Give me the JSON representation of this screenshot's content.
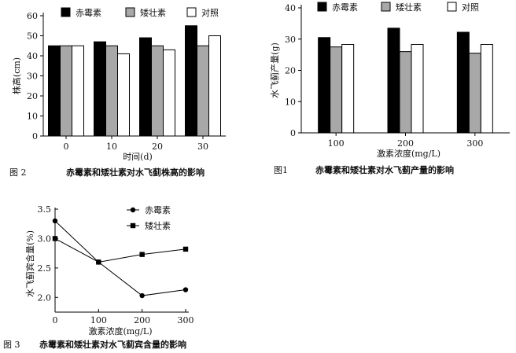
{
  "colors": {
    "black": "#000000",
    "gray": "#a8a8a8",
    "white": "#ffffff"
  },
  "chart_data": [
    {
      "id": "fig2",
      "type": "bar",
      "caption_num": "图 2",
      "caption": "赤霉素和矮壮素对水飞蓟株高的影响",
      "xlabel": "时间(d)",
      "ylabel": "株高(cm)",
      "categories": [
        "0",
        "10",
        "20",
        "30"
      ],
      "ylim": [
        0,
        60
      ],
      "yticks": [
        0,
        10,
        20,
        30,
        40,
        50,
        60
      ],
      "series": [
        {
          "name": "赤霉素",
          "color": "#000000",
          "values": [
            45,
            47,
            49,
            55
          ]
        },
        {
          "name": "矮壮素",
          "color": "#a8a8a8",
          "values": [
            45,
            45,
            45,
            45
          ]
        },
        {
          "name": "对照",
          "color": "#ffffff",
          "values": [
            45,
            41,
            43,
            50
          ]
        }
      ]
    },
    {
      "id": "fig1",
      "type": "bar",
      "caption_num": "图1",
      "caption": "赤霉素和矮壮素对水飞蓟产量的影响",
      "xlabel": "激素浓度(mg/L)",
      "ylabel": "水飞蓟产量(g)",
      "categories": [
        "100",
        "200",
        "300"
      ],
      "ylim": [
        0,
        40
      ],
      "yticks": [
        0,
        10,
        20,
        30,
        40
      ],
      "series": [
        {
          "name": "赤霉素",
          "color": "#000000",
          "values": [
            30.5,
            33.5,
            32.2
          ]
        },
        {
          "name": "矮壮素",
          "color": "#a8a8a8",
          "values": [
            27.5,
            26,
            25.5
          ]
        },
        {
          "name": "对照",
          "color": "#ffffff",
          "values": [
            28.3,
            28.3,
            28.3
          ]
        }
      ]
    },
    {
      "id": "fig3",
      "type": "line",
      "caption_num": "图 3",
      "caption": "赤霉素和矮壮素对水飞蓟宾含量的影响",
      "xlabel": "激素浓度(mg/L)",
      "ylabel": "水飞蓟宾含量(%)",
      "x": [
        0,
        100,
        200,
        300
      ],
      "xticks": [
        "0",
        "100",
        "200",
        "300"
      ],
      "xlim": [
        0,
        300
      ],
      "ylim": [
        1.75,
        3.5
      ],
      "yticks": [
        "2.0",
        "2.5",
        "3.0",
        "3.5"
      ],
      "series": [
        {
          "name": "赤霉素",
          "marker": "circle",
          "values": [
            3.3,
            2.6,
            2.03,
            2.13
          ]
        },
        {
          "name": "矮壮素",
          "marker": "square",
          "values": [
            3.0,
            2.6,
            2.73,
            2.82
          ]
        }
      ]
    }
  ]
}
